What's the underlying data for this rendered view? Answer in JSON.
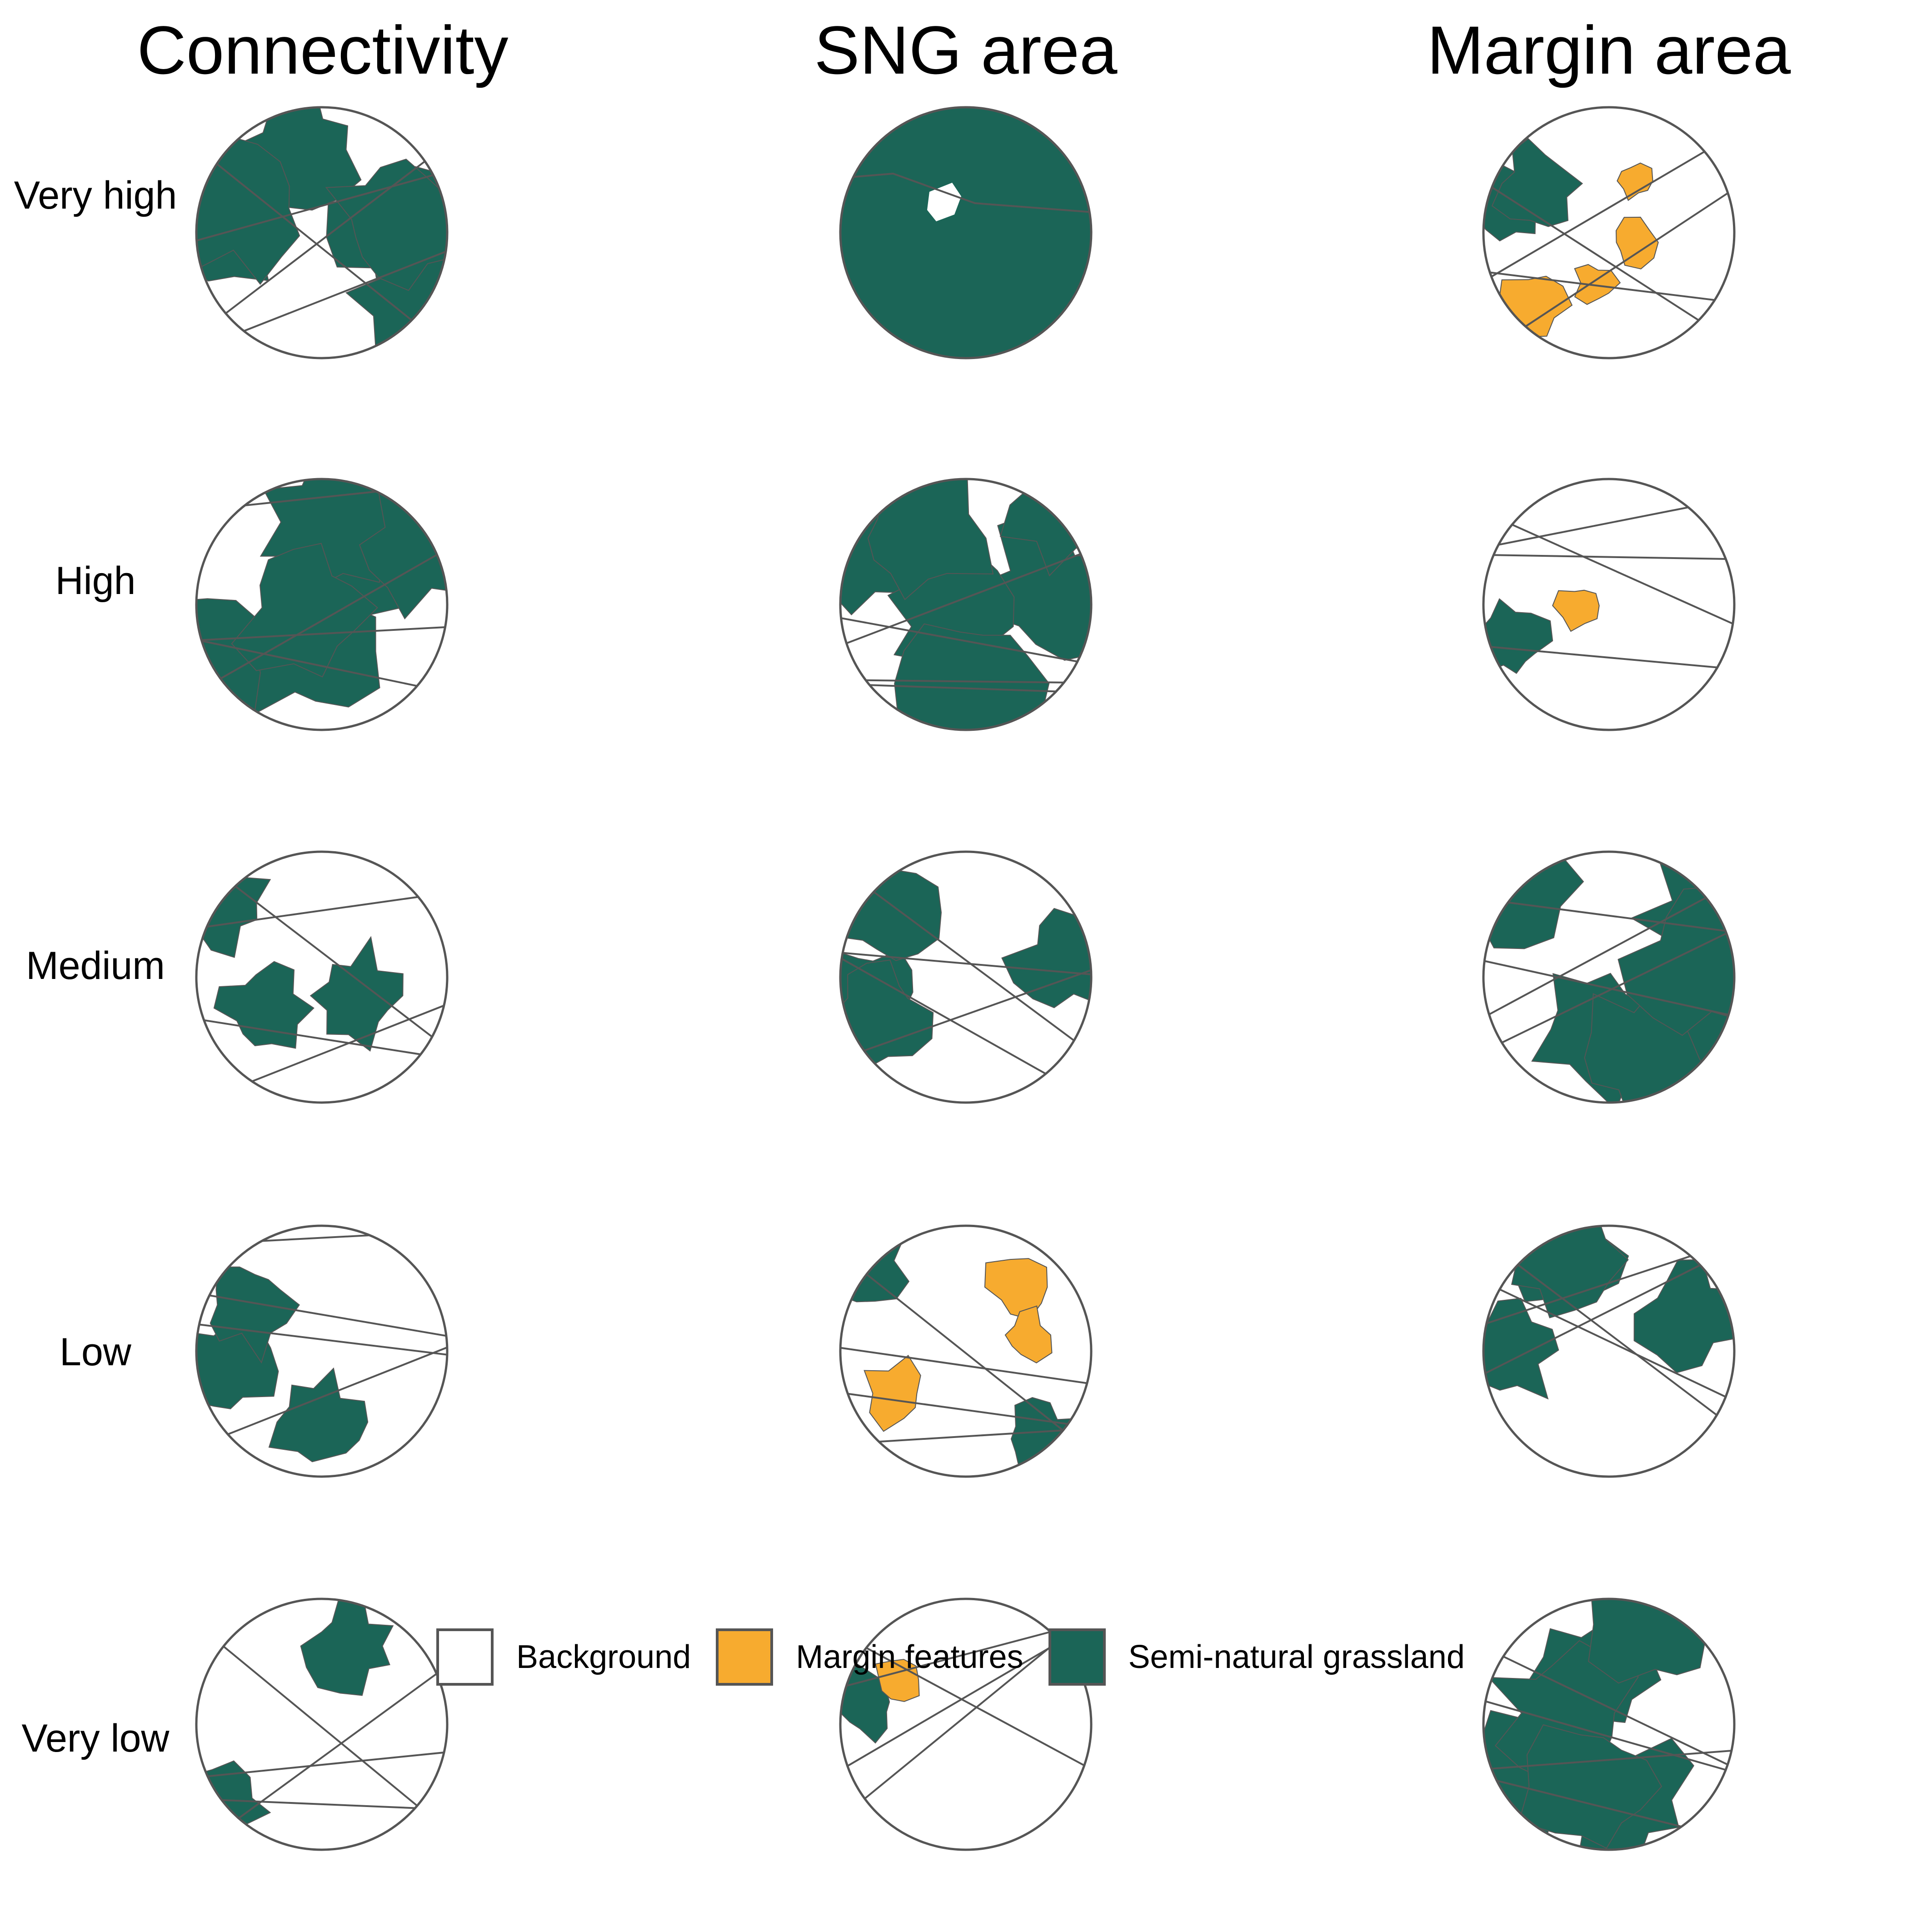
{
  "columns": [
    "Connectivity",
    "SNG area",
    "Margin area"
  ],
  "rows": [
    "Very high",
    "High",
    "Medium",
    "Low",
    "Very low"
  ],
  "legend": [
    {
      "label": "Background",
      "color": "#ffffff"
    },
    {
      "label": "Margin features",
      "color": "#f7ab2f"
    },
    {
      "label": "Semi-natural grassland",
      "color": "#1b6557"
    }
  ],
  "colors": {
    "outline": "#555555",
    "grassland": "#1b6557",
    "margin": "#f7ab2f",
    "background": "#ffffff"
  }
}
